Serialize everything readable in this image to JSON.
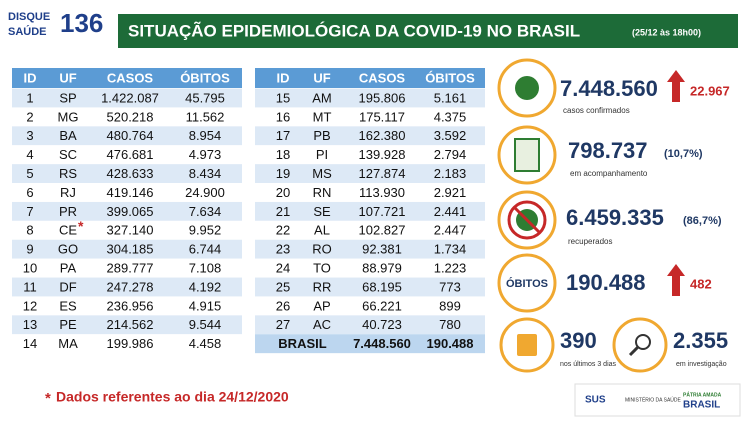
{
  "header": {
    "logo": {
      "line1": "DISQUE",
      "line2": "SAÚDE",
      "number": "136"
    },
    "title": "SITUAÇÃO EPIDEMIOLÓGICA DA COVID-19 NO BRASIL",
    "subtitle": "(25/12 às 18h00)"
  },
  "tables": [
    {
      "columns": [
        "ID",
        "UF",
        "CASOS",
        "ÓBITOS"
      ],
      "rows": [
        [
          "1",
          "SP",
          "1.422.087",
          "45.795"
        ],
        [
          "2",
          "MG",
          "520.218",
          "11.562"
        ],
        [
          "3",
          "BA",
          "480.764",
          "8.954"
        ],
        [
          "4",
          "SC",
          "476.681",
          "4.973"
        ],
        [
          "5",
          "RS",
          "428.633",
          "8.434"
        ],
        [
          "6",
          "RJ",
          "419.146",
          "24.900"
        ],
        [
          "7",
          "PR",
          "399.065",
          "7.634"
        ],
        [
          "8",
          "CE",
          "327.140",
          "9.952"
        ],
        [
          "9",
          "GO",
          "304.185",
          "6.744"
        ],
        [
          "10",
          "PA",
          "289.777",
          "7.108"
        ],
        [
          "11",
          "DF",
          "247.278",
          "4.192"
        ],
        [
          "12",
          "ES",
          "236.956",
          "4.915"
        ],
        [
          "13",
          "PE",
          "214.562",
          "9.544"
        ],
        [
          "14",
          "MA",
          "199.986",
          "4.458"
        ]
      ]
    },
    {
      "columns": [
        "ID",
        "UF",
        "CASOS",
        "ÓBITOS"
      ],
      "rows": [
        [
          "15",
          "AM",
          "195.806",
          "5.161"
        ],
        [
          "16",
          "MT",
          "175.117",
          "4.375"
        ],
        [
          "17",
          "PB",
          "162.380",
          "3.592"
        ],
        [
          "18",
          "PI",
          "139.928",
          "2.794"
        ],
        [
          "19",
          "MS",
          "127.874",
          "2.183"
        ],
        [
          "20",
          "RN",
          "113.930",
          "2.921"
        ],
        [
          "21",
          "SE",
          "107.721",
          "2.441"
        ],
        [
          "22",
          "AL",
          "102.827",
          "2.447"
        ],
        [
          "23",
          "RO",
          "92.381",
          "1.734"
        ],
        [
          "24",
          "TO",
          "88.979",
          "1.223"
        ],
        [
          "25",
          "RR",
          "68.195",
          "773"
        ],
        [
          "26",
          "AP",
          "66.221",
          "899"
        ],
        [
          "27",
          "AC",
          "40.723",
          "780"
        ]
      ],
      "total": [
        "BRASIL",
        "7.448.560",
        "190.488"
      ]
    }
  ],
  "stats": {
    "confirmados": {
      "value": "7.448.560",
      "delta": "22.967",
      "label": "casos confirmados"
    },
    "acompanhamento": {
      "value": "798.737",
      "pct": "(10,7%)",
      "label": "em acompanhamento"
    },
    "recuperados": {
      "value": "6.459.335",
      "pct": "(86,7%)",
      "label": "recuperados"
    },
    "obitos": {
      "label": "ÓBITOS",
      "value": "190.488",
      "delta": "482"
    },
    "ultimos": {
      "value": "390",
      "label": "nos últimos 3 dias"
    },
    "investigacao": {
      "value": "2.355",
      "label": "em investigação"
    }
  },
  "footnote": {
    "mark": "*",
    "text": "Dados referentes ao dia 24/12/2020"
  },
  "footer": {
    "sus": "SUS",
    "ministerio": "MINISTÉRIO DA SAÚDE",
    "patria": "PÁTRIA AMADA",
    "brasil": "BRASIL"
  }
}
